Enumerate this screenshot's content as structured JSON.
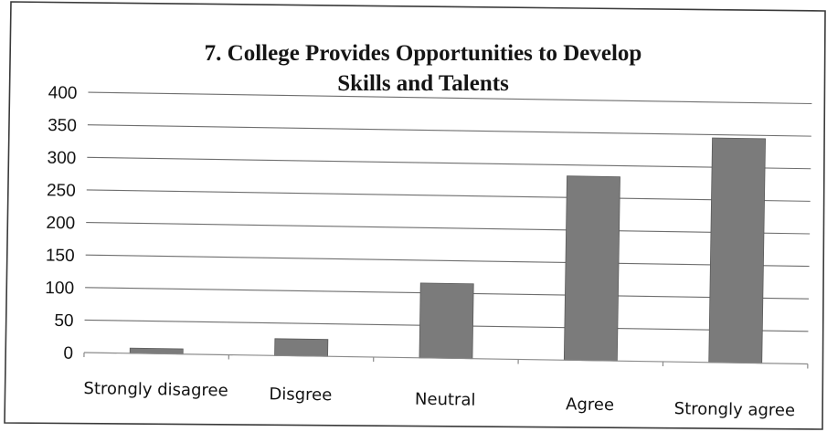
{
  "chart_data": {
    "type": "bar",
    "title": "7. College Provides Opportunities to  Develop",
    "subtitle": "Skills and Talents",
    "categories": [
      "Strongly disagree",
      "Disgree",
      "Neutral",
      "Agree",
      "Strongly agree"
    ],
    "values": [
      8,
      26,
      115,
      283,
      345
    ],
    "ylim": [
      0,
      400
    ],
    "yticks": [
      "0",
      "50",
      "100",
      "150",
      "200",
      "250",
      "300",
      "350",
      "400"
    ],
    "xlabel": "",
    "ylabel": "",
    "grid": true,
    "legend": "none",
    "bar_color": "#7b7b7b"
  }
}
